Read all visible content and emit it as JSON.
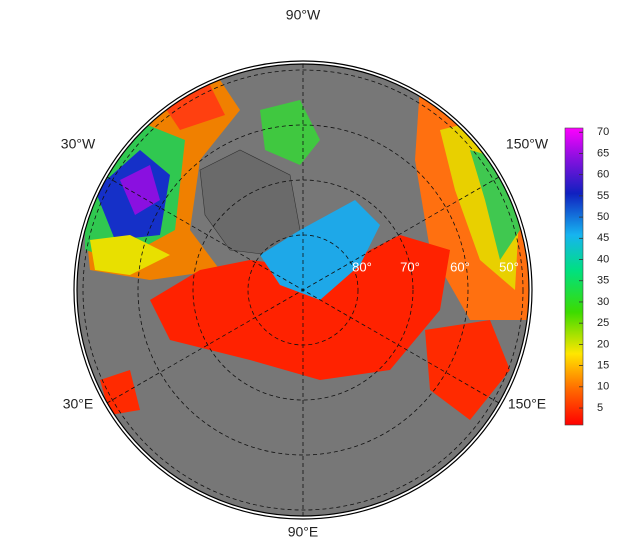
{
  "map": {
    "longitude_labels": [
      "90°W",
      "30°W",
      "150°W",
      "30°E",
      "150°E",
      "90°E"
    ],
    "latitude_labels": [
      "80°",
      "70°",
      "60°",
      "50°"
    ],
    "colorbar": {
      "lim": [
        1,
        71
      ],
      "ticks": [
        5,
        10,
        15,
        20,
        25,
        30,
        35,
        40,
        45,
        50,
        55,
        60,
        65,
        70
      ]
    }
  }
}
